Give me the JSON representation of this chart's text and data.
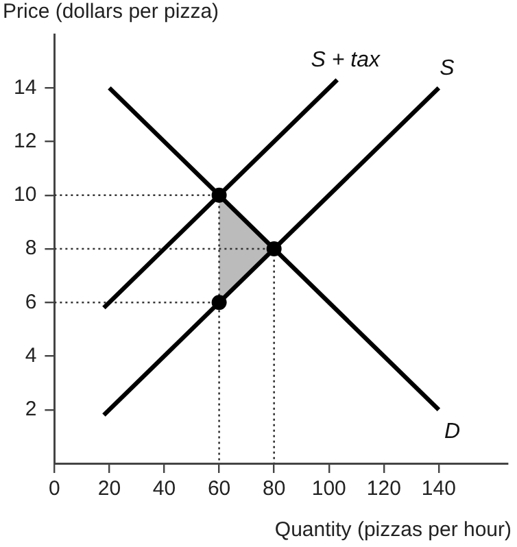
{
  "chart_data": {
    "type": "line",
    "xlabel": "Quantity (pizzas per hour)",
    "ylabel": "Price (dollars per pizza)",
    "xlim": [
      0,
      165
    ],
    "ylim": [
      0,
      16
    ],
    "xticks": [
      0,
      20,
      40,
      60,
      80,
      100,
      120,
      140
    ],
    "yticks": [
      2,
      4,
      6,
      8,
      10,
      12,
      14
    ],
    "grid": false,
    "legend": false,
    "series": [
      {
        "type": "area",
        "color": "#bbbbbb",
        "x": [
          60,
          60,
          80,
          60
        ],
        "values": [
          6,
          10,
          8,
          6
        ]
      },
      {
        "line_style": "dotted",
        "color": "#333333",
        "x": [
          0,
          60,
          60
        ],
        "values": [
          10,
          10,
          0
        ]
      },
      {
        "line_style": "dotted",
        "color": "#333333",
        "x": [
          0,
          80,
          80
        ],
        "values": [
          8,
          8,
          0
        ]
      },
      {
        "line_style": "dotted",
        "color": "#333333",
        "x": [
          0,
          60
        ],
        "values": [
          6,
          6
        ]
      },
      {
        "name": "D",
        "line_style": "solid",
        "color": "#000000",
        "x": [
          20,
          140
        ],
        "values": [
          14,
          2
        ]
      },
      {
        "name": "S",
        "line_style": "solid",
        "color": "#000000",
        "x": [
          18,
          140
        ],
        "values": [
          1.8,
          14
        ]
      },
      {
        "name": "S + tax",
        "line_style": "solid",
        "color": "#000000",
        "x": [
          18,
          103
        ],
        "values": [
          5.8,
          14.3
        ]
      },
      {
        "type": "scatter",
        "marker": "circle",
        "color": "#000000",
        "x": [
          60,
          80,
          60
        ],
        "values": [
          10,
          8,
          6
        ]
      }
    ]
  }
}
